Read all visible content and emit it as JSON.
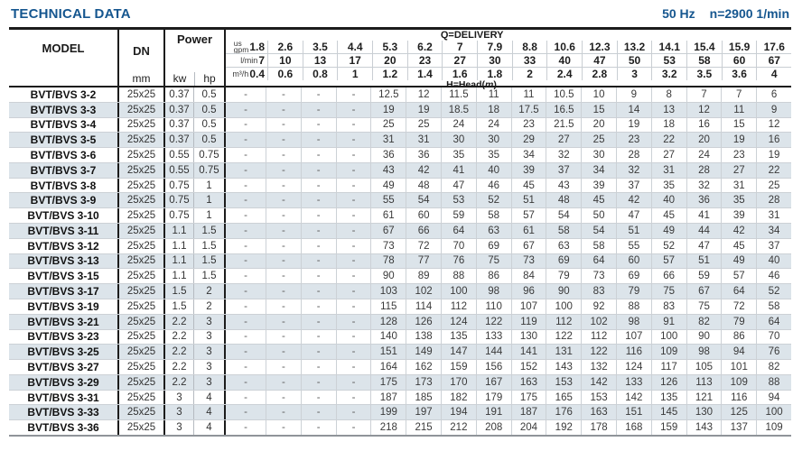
{
  "page": {
    "title": "TECHNICAL DATA",
    "frequency": "50 Hz",
    "speed": "n=2900 1/min"
  },
  "colors": {
    "accent": "#15568f",
    "row_shade": "#dce4ea",
    "thick_line": "#1c1c1c",
    "grid_line": "#ccd1d6"
  },
  "table": {
    "header": {
      "model": "MODEL",
      "dn": "DN",
      "dn_unit": "mm",
      "power": "Power",
      "kw": "kw",
      "hp": "hp",
      "delivery_label": "Q=DELIVERY",
      "head_prefix": "H=Head(",
      "head_m": "m",
      "head_suffix": ")"
    },
    "flow_rows": [
      {
        "label_lines": [
          "us",
          "gpm"
        ],
        "values": [
          "1.8",
          "2.6",
          "3.5",
          "4.4",
          "5.3",
          "6.2",
          "7",
          "7.9",
          "8.8",
          "10.6",
          "12.3",
          "13.2",
          "14.1",
          "15.4",
          "15.9",
          "17.6"
        ]
      },
      {
        "label_lines": [
          "l/min"
        ],
        "values": [
          "7",
          "10",
          "13",
          "17",
          "20",
          "23",
          "27",
          "30",
          "33",
          "40",
          "47",
          "50",
          "53",
          "58",
          "60",
          "67"
        ]
      },
      {
        "label_lines": [
          "m³/h"
        ],
        "values": [
          "0.4",
          "0.6",
          "0.8",
          "1",
          "1.2",
          "1.4",
          "1.6",
          "1.8",
          "2",
          "2.4",
          "2.8",
          "3",
          "3.2",
          "3.5",
          "3.6",
          "4"
        ]
      }
    ],
    "rows": [
      {
        "model": "BVT/BVS 3-2",
        "dn": "25x25",
        "kw": "0.37",
        "hp": "0.5",
        "head": [
          "-",
          "-",
          "-",
          "-",
          "12.5",
          "12",
          "11.5",
          "11",
          "11",
          "10.5",
          "10",
          "9",
          "8",
          "7",
          "7",
          "6"
        ]
      },
      {
        "model": "BVT/BVS 3-3",
        "dn": "25x25",
        "kw": "0.37",
        "hp": "0.5",
        "head": [
          "-",
          "-",
          "-",
          "-",
          "19",
          "19",
          "18.5",
          "18",
          "17.5",
          "16.5",
          "15",
          "14",
          "13",
          "12",
          "11",
          "9"
        ]
      },
      {
        "model": "BVT/BVS 3-4",
        "dn": "25x25",
        "kw": "0.37",
        "hp": "0.5",
        "head": [
          "-",
          "-",
          "-",
          "-",
          "25",
          "25",
          "24",
          "24",
          "23",
          "21.5",
          "20",
          "19",
          "18",
          "16",
          "15",
          "12"
        ]
      },
      {
        "model": "BVT/BVS 3-5",
        "dn": "25x25",
        "kw": "0.37",
        "hp": "0.5",
        "head": [
          "-",
          "-",
          "-",
          "-",
          "31",
          "31",
          "30",
          "30",
          "29",
          "27",
          "25",
          "23",
          "22",
          "20",
          "19",
          "16"
        ]
      },
      {
        "model": "BVT/BVS 3-6",
        "dn": "25x25",
        "kw": "0.55",
        "hp": "0.75",
        "head": [
          "-",
          "-",
          "-",
          "-",
          "36",
          "36",
          "35",
          "35",
          "34",
          "32",
          "30",
          "28",
          "27",
          "24",
          "23",
          "19"
        ]
      },
      {
        "model": "BVT/BVS 3-7",
        "dn": "25x25",
        "kw": "0.55",
        "hp": "0.75",
        "head": [
          "-",
          "-",
          "-",
          "-",
          "43",
          "42",
          "41",
          "40",
          "39",
          "37",
          "34",
          "32",
          "31",
          "28",
          "27",
          "22"
        ]
      },
      {
        "model": "BVT/BVS 3-8",
        "dn": "25x25",
        "kw": "0.75",
        "hp": "1",
        "head": [
          "-",
          "-",
          "-",
          "-",
          "49",
          "48",
          "47",
          "46",
          "45",
          "43",
          "39",
          "37",
          "35",
          "32",
          "31",
          "25"
        ]
      },
      {
        "model": "BVT/BVS 3-9",
        "dn": "25x25",
        "kw": "0.75",
        "hp": "1",
        "head": [
          "-",
          "-",
          "-",
          "-",
          "55",
          "54",
          "53",
          "52",
          "51",
          "48",
          "45",
          "42",
          "40",
          "36",
          "35",
          "28"
        ]
      },
      {
        "model": "BVT/BVS 3-10",
        "dn": "25x25",
        "kw": "0.75",
        "hp": "1",
        "head": [
          "-",
          "-",
          "-",
          "-",
          "61",
          "60",
          "59",
          "58",
          "57",
          "54",
          "50",
          "47",
          "45",
          "41",
          "39",
          "31"
        ]
      },
      {
        "model": "BVT/BVS 3-11",
        "dn": "25x25",
        "kw": "1.1",
        "hp": "1.5",
        "head": [
          "-",
          "-",
          "-",
          "-",
          "67",
          "66",
          "64",
          "63",
          "61",
          "58",
          "54",
          "51",
          "49",
          "44",
          "42",
          "34"
        ]
      },
      {
        "model": "BVT/BVS 3-12",
        "dn": "25x25",
        "kw": "1.1",
        "hp": "1.5",
        "head": [
          "-",
          "-",
          "-",
          "-",
          "73",
          "72",
          "70",
          "69",
          "67",
          "63",
          "58",
          "55",
          "52",
          "47",
          "45",
          "37"
        ]
      },
      {
        "model": "BVT/BVS 3-13",
        "dn": "25x25",
        "kw": "1.1",
        "hp": "1.5",
        "head": [
          "-",
          "-",
          "-",
          "-",
          "78",
          "77",
          "76",
          "75",
          "73",
          "69",
          "64",
          "60",
          "57",
          "51",
          "49",
          "40"
        ]
      },
      {
        "model": "BVT/BVS 3-15",
        "dn": "25x25",
        "kw": "1.1",
        "hp": "1.5",
        "head": [
          "-",
          "-",
          "-",
          "-",
          "90",
          "89",
          "88",
          "86",
          "84",
          "79",
          "73",
          "69",
          "66",
          "59",
          "57",
          "46"
        ]
      },
      {
        "model": "BVT/BVS 3-17",
        "dn": "25x25",
        "kw": "1.5",
        "hp": "2",
        "head": [
          "-",
          "-",
          "-",
          "-",
          "103",
          "102",
          "100",
          "98",
          "96",
          "90",
          "83",
          "79",
          "75",
          "67",
          "64",
          "52"
        ]
      },
      {
        "model": "BVT/BVS 3-19",
        "dn": "25x25",
        "kw": "1.5",
        "hp": "2",
        "head": [
          "-",
          "-",
          "-",
          "-",
          "115",
          "114",
          "112",
          "110",
          "107",
          "100",
          "92",
          "88",
          "83",
          "75",
          "72",
          "58"
        ]
      },
      {
        "model": "BVT/BVS 3-21",
        "dn": "25x25",
        "kw": "2.2",
        "hp": "3",
        "head": [
          "-",
          "-",
          "-",
          "-",
          "128",
          "126",
          "124",
          "122",
          "119",
          "112",
          "102",
          "98",
          "91",
          "82",
          "79",
          "64"
        ]
      },
      {
        "model": "BVT/BVS 3-23",
        "dn": "25x25",
        "kw": "2.2",
        "hp": "3",
        "head": [
          "-",
          "-",
          "-",
          "-",
          "140",
          "138",
          "135",
          "133",
          "130",
          "122",
          "112",
          "107",
          "100",
          "90",
          "86",
          "70"
        ]
      },
      {
        "model": "BVT/BVS 3-25",
        "dn": "25x25",
        "kw": "2.2",
        "hp": "3",
        "head": [
          "-",
          "-",
          "-",
          "-",
          "151",
          "149",
          "147",
          "144",
          "141",
          "131",
          "122",
          "116",
          "109",
          "98",
          "94",
          "76"
        ]
      },
      {
        "model": "BVT/BVS 3-27",
        "dn": "25x25",
        "kw": "2.2",
        "hp": "3",
        "head": [
          "-",
          "-",
          "-",
          "-",
          "164",
          "162",
          "159",
          "156",
          "152",
          "143",
          "132",
          "124",
          "117",
          "105",
          "101",
          "82"
        ]
      },
      {
        "model": "BVT/BVS 3-29",
        "dn": "25x25",
        "kw": "2.2",
        "hp": "3",
        "head": [
          "-",
          "-",
          "-",
          "-",
          "175",
          "173",
          "170",
          "167",
          "163",
          "153",
          "142",
          "133",
          "126",
          "113",
          "109",
          "88"
        ]
      },
      {
        "model": "BVT/BVS 3-31",
        "dn": "25x25",
        "kw": "3",
        "hp": "4",
        "head": [
          "-",
          "-",
          "-",
          "-",
          "187",
          "185",
          "182",
          "179",
          "175",
          "165",
          "153",
          "142",
          "135",
          "121",
          "116",
          "94"
        ]
      },
      {
        "model": "BVT/BVS 3-33",
        "dn": "25x25",
        "kw": "3",
        "hp": "4",
        "head": [
          "-",
          "-",
          "-",
          "-",
          "199",
          "197",
          "194",
          "191",
          "187",
          "176",
          "163",
          "151",
          "145",
          "130",
          "125",
          "100"
        ]
      },
      {
        "model": "BVT/BVS 3-36",
        "dn": "25x25",
        "kw": "3",
        "hp": "4",
        "head": [
          "-",
          "-",
          "-",
          "-",
          "218",
          "215",
          "212",
          "208",
          "204",
          "192",
          "178",
          "168",
          "159",
          "143",
          "137",
          "109"
        ]
      }
    ]
  }
}
